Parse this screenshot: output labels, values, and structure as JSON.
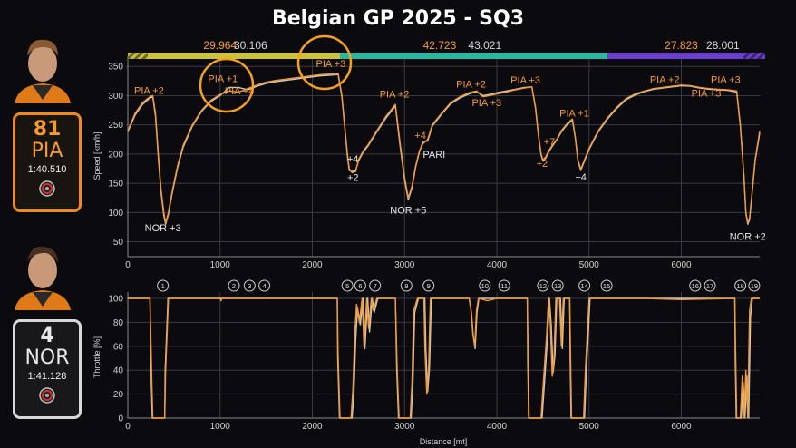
{
  "header": {
    "title": "Belgian GP 2025 - SQ3"
  },
  "drivers": [
    {
      "number": "81",
      "code": "PIA",
      "laptime": "1:40.510",
      "color": "#f59a30"
    },
    {
      "number": "4",
      "code": "NOR",
      "laptime": "1:41.128",
      "color": "#e0e0e0"
    }
  ],
  "colors": {
    "pia": "#f59a30",
    "nor": "#c8c8c8",
    "sector1": "#c9c23a",
    "sector2": "#2ab7a0",
    "sector3": "#6a3fd0",
    "grid": "#3a3a44",
    "axis": "#d0d0d0"
  },
  "icons": {
    "tyre": "tyre-icon"
  },
  "chart_data": [
    {
      "type": "line",
      "title": "Belgian GP 2025 - SQ3",
      "xlabel": "",
      "ylabel": "Speed [km/h]",
      "xlim": [
        0,
        6850
      ],
      "ylim": [
        40,
        355
      ],
      "x_ticks": [
        0,
        1000,
        2000,
        3000,
        4000,
        5000,
        6000
      ],
      "y_ticks": [
        50,
        100,
        150,
        200,
        250,
        300,
        350
      ],
      "grid": true,
      "sector_times": [
        {
          "a": "29.964",
          "b": "30.106"
        },
        {
          "a": "42.723",
          "b": "43.021"
        },
        {
          "a": "27.823",
          "b": "28.001"
        }
      ],
      "annotations": [
        {
          "text": "PIA +2",
          "x": 230,
          "y": 303,
          "color": "pia"
        },
        {
          "text": "NOR +3",
          "x": 380,
          "y": 68,
          "color": "nor"
        },
        {
          "text": "PIA +1",
          "x": 1030,
          "y": 323,
          "color": "pia"
        },
        {
          "text": "PIA +4",
          "x": 1210,
          "y": 302,
          "color": "pia"
        },
        {
          "text": "PIA +3",
          "x": 2200,
          "y": 349,
          "color": "pia"
        },
        {
          "text": "+4",
          "x": 2440,
          "y": 186,
          "color": "nor"
        },
        {
          "text": "+2",
          "x": 2440,
          "y": 154,
          "color": "nor"
        },
        {
          "text": "PIA +2",
          "x": 2890,
          "y": 297,
          "color": "pia"
        },
        {
          "text": "NOR +5",
          "x": 3040,
          "y": 98,
          "color": "nor"
        },
        {
          "text": "+4",
          "x": 3170,
          "y": 226,
          "color": "pia"
        },
        {
          "text": "PARI",
          "x": 3320,
          "y": 194,
          "color": "nor"
        },
        {
          "text": "PIA +2",
          "x": 3720,
          "y": 314,
          "color": "pia"
        },
        {
          "text": "PIA +3",
          "x": 3890,
          "y": 282,
          "color": "pia"
        },
        {
          "text": "PIA +3",
          "x": 4310,
          "y": 321,
          "color": "pia"
        },
        {
          "text": "+7",
          "x": 4570,
          "y": 215,
          "color": "pia"
        },
        {
          "text": "+2",
          "x": 4490,
          "y": 178,
          "color": "pia"
        },
        {
          "text": "PIA +1",
          "x": 4840,
          "y": 264,
          "color": "pia"
        },
        {
          "text": "+4",
          "x": 4910,
          "y": 155,
          "color": "nor"
        },
        {
          "text": "PIA +2",
          "x": 5820,
          "y": 322,
          "color": "pia"
        },
        {
          "text": "PIA +3",
          "x": 6270,
          "y": 298,
          "color": "pia"
        },
        {
          "text": "PIA +3",
          "x": 6480,
          "y": 322,
          "color": "pia"
        },
        {
          "text": "NOR +2",
          "x": 6720,
          "y": 53,
          "color": "nor"
        }
      ],
      "series": [
        {
          "name": "PIA",
          "x": [
            0,
            80,
            160,
            240,
            270,
            300,
            330,
            360,
            390,
            410,
            440,
            480,
            540,
            600,
            700,
            800,
            900,
            1000,
            1100,
            1200,
            1300,
            1400,
            1500,
            1600,
            1700,
            1800,
            1900,
            2000,
            2100,
            2200,
            2280,
            2320,
            2350,
            2380,
            2400,
            2430,
            2470,
            2500,
            2550,
            2600,
            2700,
            2800,
            2900,
            2950,
            3000,
            3040,
            3080,
            3120,
            3160,
            3200,
            3250,
            3300,
            3400,
            3500,
            3600,
            3700,
            3780,
            3850,
            3920,
            4000,
            4100,
            4200,
            4300,
            4380,
            4420,
            4450,
            4480,
            4500,
            4530,
            4560,
            4600,
            4650,
            4700,
            4760,
            4820,
            4850,
            4880,
            4910,
            4950,
            5000,
            5100,
            5200,
            5300,
            5400,
            5500,
            5600,
            5700,
            5800,
            5900,
            6000,
            6100,
            6200,
            6300,
            6400,
            6500,
            6600,
            6640,
            6680,
            6700,
            6720,
            6740,
            6770,
            6800,
            6850
          ],
          "y": [
            240,
            270,
            288,
            298,
            300,
            270,
            200,
            140,
            100,
            82,
            100,
            135,
            180,
            215,
            250,
            275,
            292,
            302,
            308,
            306,
            312,
            318,
            323,
            326,
            328,
            330,
            332,
            334,
            336,
            337,
            338,
            300,
            250,
            200,
            175,
            168,
            170,
            190,
            205,
            215,
            240,
            265,
            285,
            220,
            160,
            125,
            145,
            180,
            205,
            218,
            225,
            250,
            270,
            288,
            298,
            305,
            308,
            298,
            300,
            303,
            306,
            310,
            313,
            315,
            280,
            235,
            200,
            190,
            195,
            205,
            215,
            225,
            240,
            252,
            260,
            230,
            190,
            174,
            190,
            210,
            240,
            262,
            280,
            295,
            303,
            308,
            312,
            314,
            316,
            318,
            317,
            314,
            312,
            311,
            310,
            308,
            250,
            160,
            100,
            82,
            90,
            140,
            190,
            240
          ]
        },
        {
          "name": "NOR",
          "x": [
            0,
            80,
            160,
            240,
            270,
            300,
            330,
            360,
            390,
            410,
            440,
            480,
            540,
            600,
            700,
            800,
            900,
            1000,
            1100,
            1200,
            1300,
            1400,
            1500,
            1600,
            1700,
            1800,
            1900,
            2000,
            2100,
            2200,
            2280,
            2320,
            2350,
            2380,
            2400,
            2430,
            2470,
            2500,
            2550,
            2600,
            2700,
            2800,
            2900,
            2950,
            3000,
            3040,
            3080,
            3120,
            3160,
            3200,
            3250,
            3300,
            3400,
            3500,
            3600,
            3700,
            3780,
            3850,
            3920,
            4000,
            4100,
            4200,
            4300,
            4380,
            4420,
            4450,
            4480,
            4500,
            4530,
            4560,
            4600,
            4650,
            4700,
            4760,
            4820,
            4850,
            4880,
            4910,
            4950,
            5000,
            5100,
            5200,
            5300,
            5400,
            5500,
            5600,
            5700,
            5800,
            5900,
            6000,
            6100,
            6200,
            6300,
            6400,
            6500,
            6600,
            6640,
            6680,
            6700,
            6720,
            6740,
            6770,
            6800,
            6850
          ],
          "y": [
            238,
            267,
            285,
            296,
            298,
            265,
            195,
            135,
            95,
            80,
            97,
            132,
            177,
            212,
            248,
            273,
            290,
            300,
            314,
            314,
            310,
            316,
            321,
            324,
            326,
            328,
            330,
            332,
            334,
            335,
            336,
            298,
            248,
            196,
            172,
            170,
            172,
            188,
            203,
            213,
            238,
            262,
            282,
            215,
            155,
            122,
            142,
            178,
            203,
            222,
            222,
            248,
            268,
            286,
            296,
            303,
            307,
            300,
            302,
            305,
            308,
            311,
            314,
            315,
            278,
            233,
            198,
            188,
            193,
            203,
            213,
            224,
            238,
            250,
            258,
            228,
            188,
            172,
            188,
            208,
            238,
            260,
            278,
            293,
            301,
            307,
            311,
            313,
            315,
            317,
            316,
            313,
            311,
            310,
            309,
            306,
            248,
            158,
            98,
            80,
            88,
            138,
            188,
            236
          ]
        }
      ]
    },
    {
      "type": "line",
      "xlabel": "Distance [mt]",
      "ylabel": "Throttle [%]",
      "xlim": [
        0,
        6850
      ],
      "ylim": [
        0,
        100
      ],
      "x_ticks": [
        0,
        1000,
        2000,
        3000,
        4000,
        5000,
        6000
      ],
      "y_ticks": [
        0,
        20,
        40,
        60,
        80,
        100
      ],
      "grid": true,
      "corner_labels": [
        {
          "n": "1",
          "x": 380
        },
        {
          "n": "2",
          "x": 1150
        },
        {
          "n": "3",
          "x": 1320
        },
        {
          "n": "4",
          "x": 1480
        },
        {
          "n": "5",
          "x": 2380
        },
        {
          "n": "6",
          "x": 2520
        },
        {
          "n": "7",
          "x": 2680
        },
        {
          "n": "8",
          "x": 3020
        },
        {
          "n": "9",
          "x": 3260
        },
        {
          "n": "10",
          "x": 3870
        },
        {
          "n": "11",
          "x": 4080
        },
        {
          "n": "12",
          "x": 4500
        },
        {
          "n": "13",
          "x": 4660
        },
        {
          "n": "14",
          "x": 4950
        },
        {
          "n": "15",
          "x": 5190
        },
        {
          "n": "16",
          "x": 6150
        },
        {
          "n": "17",
          "x": 6310
        },
        {
          "n": "18",
          "x": 6640
        },
        {
          "n": "19",
          "x": 6790
        }
      ],
      "series": [
        {
          "name": "PIA",
          "x": [
            0,
            240,
            260,
            270,
            400,
            410,
            440,
            1000,
            1010,
            1020,
            2270,
            2280,
            2300,
            2420,
            2440,
            2460,
            2480,
            2510,
            2540,
            2560,
            2590,
            2610,
            2640,
            2660,
            2700,
            2720,
            2900,
            2920,
            2940,
            3060,
            3080,
            3100,
            3140,
            3180,
            3210,
            3220,
            3240,
            3260,
            3280,
            3700,
            3720,
            3740,
            3760,
            3780,
            3800,
            3900,
            4000,
            4330,
            4340,
            4350,
            4480,
            4500,
            4540,
            4560,
            4580,
            4600,
            4620,
            4640,
            4680,
            4700,
            4720,
            4790,
            4800,
            4810,
            4940,
            4960,
            5000,
            5600,
            6000,
            6580,
            6590,
            6600,
            6640,
            6660,
            6680,
            6700,
            6720,
            6740,
            6760,
            6850
          ],
          "y": [
            100,
            100,
            30,
            0,
            0,
            40,
            100,
            100,
            98,
            100,
            100,
            50,
            0,
            0,
            25,
            70,
            95,
            80,
            100,
            60,
            100,
            75,
            100,
            90,
            100,
            100,
            100,
            40,
            0,
            0,
            30,
            90,
            100,
            100,
            100,
            60,
            20,
            40,
            100,
            100,
            90,
            70,
            60,
            90,
            100,
            98,
            100,
            100,
            50,
            0,
            0,
            25,
            70,
            100,
            80,
            35,
            50,
            100,
            100,
            60,
            100,
            100,
            50,
            0,
            0,
            40,
            100,
            100,
            99,
            100,
            50,
            0,
            0,
            35,
            0,
            40,
            0,
            90,
            100,
            100
          ]
        },
        {
          "name": "NOR",
          "x": [
            0,
            240,
            255,
            265,
            400,
            405,
            435,
            1000,
            1010,
            2270,
            2275,
            2295,
            2430,
            2450,
            2470,
            2490,
            2520,
            2550,
            2570,
            2600,
            2620,
            2650,
            2670,
            2710,
            2900,
            2915,
            2935,
            3070,
            3090,
            3110,
            3150,
            3190,
            3220,
            3230,
            3250,
            3270,
            3290,
            3700,
            3725,
            3745,
            3765,
            3785,
            3805,
            4330,
            4335,
            4345,
            4490,
            4510,
            4550,
            4570,
            4590,
            4610,
            4630,
            4650,
            4690,
            4710,
            4730,
            4790,
            4795,
            4805,
            4950,
            4970,
            5010,
            6580,
            6585,
            6595,
            6650,
            6670,
            6690,
            6710,
            6730,
            6750,
            6770,
            6850
          ],
          "y": [
            100,
            100,
            30,
            0,
            0,
            40,
            100,
            100,
            100,
            100,
            50,
            0,
            0,
            20,
            65,
            92,
            78,
            100,
            58,
            100,
            72,
            100,
            88,
            100,
            100,
            40,
            0,
            0,
            28,
            88,
            100,
            100,
            100,
            58,
            22,
            42,
            100,
            100,
            88,
            68,
            58,
            88,
            100,
            100,
            50,
            0,
            0,
            22,
            68,
            100,
            78,
            38,
            52,
            100,
            100,
            58,
            100,
            100,
            50,
            0,
            0,
            38,
            100,
            100,
            50,
            0,
            0,
            30,
            0,
            35,
            0,
            85,
            100,
            100
          ]
        }
      ]
    }
  ]
}
